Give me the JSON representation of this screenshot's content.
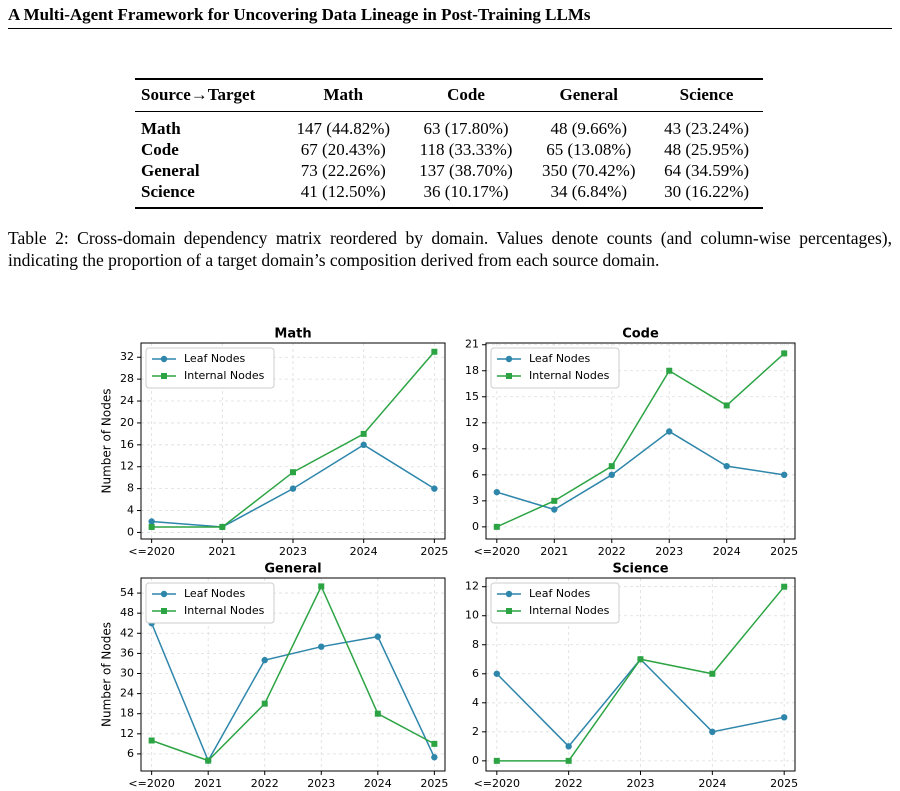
{
  "header": {
    "title": "A Multi-Agent Framework for Uncovering Data Lineage in Post-Training LLMs"
  },
  "table": {
    "columns": [
      "Source→Target",
      "Math",
      "Code",
      "General",
      "Science"
    ],
    "rows": [
      [
        "Math",
        "147 (44.82%)",
        "63 (17.80%)",
        "48 (9.66%)",
        "43 (23.24%)"
      ],
      [
        "Code",
        "67 (20.43%)",
        "118 (33.33%)",
        "65 (13.08%)",
        "48 (25.95%)"
      ],
      [
        "General",
        "73 (22.26%)",
        "137 (38.70%)",
        "350 (70.42%)",
        "64 (34.59%)"
      ],
      [
        "Science",
        "41 (12.50%)",
        "36 (10.17%)",
        "34 (6.84%)",
        "30 (16.22%)"
      ]
    ]
  },
  "caption": "Table 2: Cross-domain dependency matrix reordered by domain. Values denote counts (and column-wise percentages), indicating the proportion of a target domain’s composition derived from each source domain.",
  "chart_data": [
    {
      "type": "line",
      "title": "Math",
      "y_label": "Number of Nodes",
      "categories": [
        "<=2020",
        "2021",
        "2023",
        "2024",
        "2025"
      ],
      "series": [
        {
          "name": "Leaf Nodes",
          "color": "#2e86ab",
          "marker": "circle",
          "values": [
            2,
            1,
            8,
            16,
            8
          ]
        },
        {
          "name": "Internal Nodes",
          "color": "#2ca444",
          "marker": "square",
          "values": [
            1,
            1,
            11,
            18,
            33
          ]
        }
      ],
      "ylim": [
        -1.2,
        34.6
      ],
      "yticks": [
        0,
        4,
        8,
        12,
        16,
        20,
        24,
        28,
        32
      ],
      "grid": true,
      "legend": "upper left"
    },
    {
      "type": "line",
      "title": "Code",
      "categories": [
        "<=2020",
        "2021",
        "2022",
        "2023",
        "2024",
        "2025"
      ],
      "series": [
        {
          "name": "Leaf Nodes",
          "color": "#2e86ab",
          "marker": "circle",
          "values": [
            4,
            2,
            6,
            11,
            7,
            6
          ]
        },
        {
          "name": "Internal Nodes",
          "color": "#2ca444",
          "marker": "square",
          "values": [
            0,
            3,
            7,
            18,
            14,
            20
          ]
        }
      ],
      "ylim": [
        -1.4,
        21.2
      ],
      "yticks": [
        0,
        3,
        6,
        9,
        12,
        15,
        18,
        21
      ],
      "grid": true,
      "legend": "upper left"
    },
    {
      "type": "line",
      "title": "General",
      "y_label": "Number of Nodes",
      "categories": [
        "<=2020",
        "2021",
        "2022",
        "2023",
        "2024",
        "2025"
      ],
      "series": [
        {
          "name": "Leaf Nodes",
          "color": "#2e86ab",
          "marker": "circle",
          "values": [
            45,
            4,
            34,
            38,
            41,
            5
          ]
        },
        {
          "name": "Internal Nodes",
          "color": "#2ca444",
          "marker": "square",
          "values": [
            10,
            4,
            21,
            56,
            18,
            9
          ]
        }
      ],
      "ylim": [
        0.9,
        58.5
      ],
      "yticks": [
        6,
        12,
        18,
        24,
        30,
        36,
        42,
        48,
        54
      ],
      "grid": true,
      "legend": "upper left"
    },
    {
      "type": "line",
      "title": "Science",
      "categories": [
        "<=2020",
        "2022",
        "2023",
        "2024",
        "2025"
      ],
      "series": [
        {
          "name": "Leaf Nodes",
          "color": "#2e86ab",
          "marker": "circle",
          "values": [
            6,
            1,
            7,
            2,
            3
          ]
        },
        {
          "name": "Internal Nodes",
          "color": "#2ca444",
          "marker": "square",
          "values": [
            0,
            0,
            7,
            6,
            12
          ]
        }
      ],
      "ylim": [
        -0.7,
        12.6
      ],
      "yticks": [
        0,
        2,
        4,
        6,
        8,
        10,
        12
      ],
      "grid": true,
      "legend": "upper left"
    }
  ]
}
